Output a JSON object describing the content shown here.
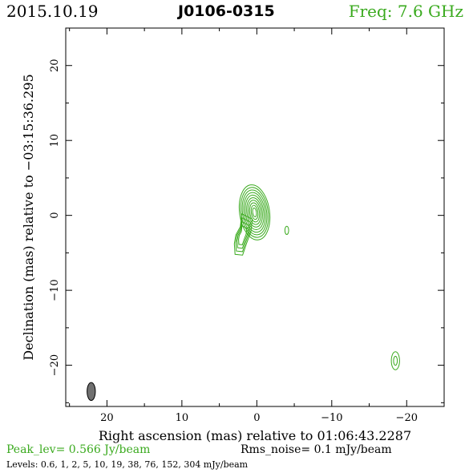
{
  "header": {
    "date": "2015.10.19",
    "source": "J0106-0315",
    "freq": "Freq: 7.6 GHz"
  },
  "footer": {
    "peak": "Peak_lev=  0.566 Jy/beam",
    "rms": "Rms_noise=  0.1 mJy/beam",
    "levels": "Levels: 0.6,   1,   2,   5,   10,   19,   38,   76,  152,  304  mJy/beam"
  },
  "colors": {
    "contour": "#3aaa1e",
    "beam": "#707070",
    "axes": "#000000"
  },
  "chart_data": {
    "type": "contour",
    "xlabel": "Right ascension (mas) relative to 01:06:43.2287",
    "ylabel": "Declination (mas) relative to −03:15:36.295",
    "xlim": [
      25.5,
      -25
    ],
    "ylim": [
      -25.5,
      25
    ],
    "xticks": [
      20,
      10,
      0,
      -10,
      -20
    ],
    "yticks": [
      20,
      10,
      0,
      -10,
      -20
    ],
    "xtick_labels": [
      "20",
      "10",
      "0",
      "−10",
      "−20"
    ],
    "ytick_labels": [
      "20",
      "10",
      "0",
      "−10",
      "−20"
    ],
    "minor_ticks_step": 5,
    "peak_jy_per_beam": 0.566,
    "rms_mjy_per_beam": 0.1,
    "levels_mjy_per_beam": [
      0.6,
      1,
      2,
      5,
      10,
      19,
      38,
      76,
      152,
      304
    ],
    "core": {
      "center": [
        0.3,
        0.4
      ],
      "outer_radius_x": 2.0,
      "outer_radius_y": 3.7,
      "ring_count": 10,
      "innermost_radius_x": 0.25,
      "innermost_radius_y": 0.6
    },
    "extension_path": [
      [
        2.0,
        0.2
      ],
      [
        2.2,
        -1.5
      ],
      [
        2.8,
        -2.6
      ],
      [
        3.0,
        -3.8
      ],
      [
        2.9,
        -5.2
      ],
      [
        1.9,
        -5.3
      ],
      [
        1.4,
        -3.8
      ],
      [
        0.8,
        -2.2
      ],
      [
        0.6,
        -0.5
      ]
    ],
    "extension_ring_count": 4,
    "side_blobs": [
      {
        "center": [
          -4.0,
          -2.0
        ],
        "rx": 0.25,
        "ry": 0.55
      },
      {
        "center": [
          -18.5,
          -19.4
        ],
        "rx": 0.55,
        "ry": 1.2
      },
      {
        "center": [
          -18.5,
          -19.4
        ],
        "rx": 0.25,
        "ry": 0.6
      }
    ],
    "beam": {
      "center": [
        22.1,
        -23.5
      ],
      "rx": 0.55,
      "ry": 1.2
    }
  }
}
